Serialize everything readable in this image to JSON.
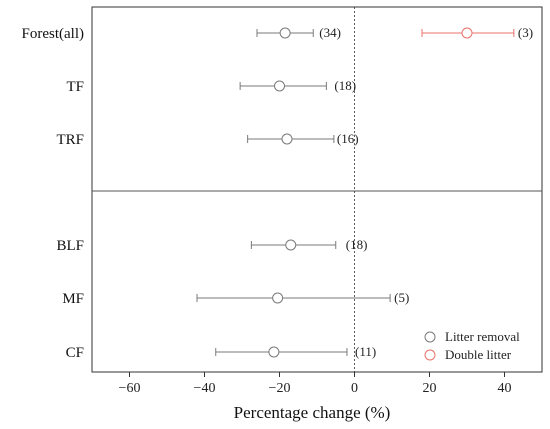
{
  "chart_data": {
    "type": "forest",
    "xlabel": "Percentage change (%)",
    "xlim": [
      -70,
      50
    ],
    "xticks": [
      -60,
      -40,
      -20,
      0,
      20,
      40
    ],
    "reference_line_x": 0,
    "categories": [
      "Forest(all)",
      "TF",
      "TRF",
      "BLF",
      "MF",
      "CF"
    ],
    "groups": [
      [
        "Forest(all)",
        "TF",
        "TRF"
      ],
      [
        "BLF",
        "MF",
        "CF"
      ]
    ],
    "series": [
      {
        "name": "Litter removal",
        "color": "#7a7a7a",
        "points": [
          {
            "category": "Forest(all)",
            "mean": -18.5,
            "lower": -26,
            "upper": -11,
            "n_label": "(34)"
          },
          {
            "category": "TF",
            "mean": -20,
            "lower": -30.5,
            "upper": -7.5,
            "n_label": "(18)"
          },
          {
            "category": "TRF",
            "mean": -18,
            "lower": -28.5,
            "upper": -5.5,
            "n_label": "(16)"
          },
          {
            "category": "BLF",
            "mean": -17,
            "lower": -27.5,
            "upper": -5,
            "n_label": "(18)"
          },
          {
            "category": "MF",
            "mean": -20.5,
            "lower": -42,
            "upper": 9.5,
            "n_label": "(5)"
          },
          {
            "category": "CF",
            "mean": -21.5,
            "lower": -37,
            "upper": -2,
            "n_label": "(11)"
          }
        ]
      },
      {
        "name": "Double litter",
        "color": "#e8736b",
        "points": [
          {
            "category": "Forest(all)",
            "mean": 30,
            "lower": 18,
            "upper": 42.5,
            "n_label": "(3)"
          }
        ]
      }
    ],
    "legend_position": "bottom-right"
  }
}
